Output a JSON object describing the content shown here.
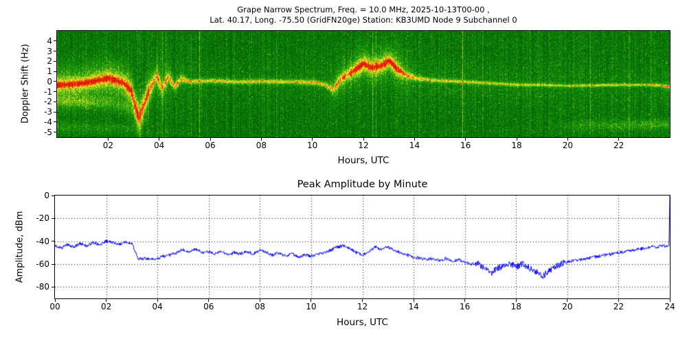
{
  "spectrogram": {
    "title_line1": "Grape Narrow Spectrum, Freq. = 10.0 MHz, 2025-10-13T00-00 ,",
    "title_line2": "Lat. 40.17, Long. -75.50 (GridFN20ge) Station: KB3UMD Node 9 Subchannel 0",
    "ylabel": "Doppler Shift (Hz)",
    "xlabel": "Hours, UTC",
    "xticks": [
      "02",
      "04",
      "06",
      "08",
      "10",
      "12",
      "14",
      "16",
      "18",
      "20",
      "22"
    ],
    "xtick_hours": [
      2,
      4,
      6,
      8,
      10,
      12,
      14,
      16,
      18,
      20,
      22
    ],
    "yticks": [
      "4",
      "3",
      "2",
      "1",
      "0",
      "-1",
      "-2",
      "-3",
      "-4",
      "-5"
    ],
    "ytick_values": [
      4,
      3,
      2,
      1,
      0,
      -1,
      -2,
      -3,
      -4,
      -5
    ]
  },
  "amplitude": {
    "title": "Peak Amplitude by Minute",
    "ylabel": "Amplitude, dBm",
    "xlabel": "Hours, UTC",
    "xticks": [
      "00",
      "02",
      "04",
      "06",
      "08",
      "10",
      "12",
      "14",
      "16",
      "18",
      "20",
      "22",
      "24"
    ],
    "xtick_hours": [
      0,
      2,
      4,
      6,
      8,
      10,
      12,
      14,
      16,
      18,
      20,
      22,
      24
    ],
    "yticks": [
      "0",
      "-20",
      "-40",
      "-60",
      "-80"
    ],
    "ytick_values": [
      0,
      -20,
      -40,
      -60,
      -80
    ]
  },
  "chart_data": [
    {
      "type": "heatmap",
      "title": "Grape Narrow Spectrum, Freq. = 10.0 MHz, 2025-10-13T00-00, Lat. 40.17, Long. -75.50 (GridFN20ge) Station: KB3UMD Node 9 Subchannel 0",
      "xlabel": "Hours, UTC",
      "ylabel": "Doppler Shift (Hz)",
      "xlim": [
        0,
        24
      ],
      "ylim": [
        -5.5,
        5
      ],
      "colormap": "green-yellow-red",
      "description": "Doppler spectrogram: green noise background with a yellow/red carrier ridge near 0 Hz; disturbed periods 00-04 UTC (dip to -3.6 Hz near 03:10) and 11-13.5 UTC (rise to +2 Hz), quiet narrow trace otherwise.",
      "doppler_ridge": {
        "x": [
          0,
          0.5,
          1,
          1.5,
          2,
          2.3,
          2.6,
          2.9,
          3.05,
          3.2,
          3.4,
          3.6,
          3.9,
          4.1,
          4.35,
          4.6,
          4.85,
          5.2,
          6,
          7,
          8,
          9,
          10,
          10.5,
          10.8,
          11.1,
          11.5,
          12,
          12.3,
          12.7,
          13,
          13.3,
          13.7,
          14.2,
          15,
          16,
          17,
          18,
          19,
          20,
          21,
          22,
          23,
          23.6,
          24
        ],
        "y": [
          -0.3,
          -0.25,
          -0.15,
          0.1,
          0.35,
          0.15,
          -0.1,
          -0.9,
          -2.4,
          -3.6,
          -2.2,
          -0.8,
          0.6,
          -0.7,
          0.5,
          -0.5,
          0.3,
          0,
          0.1,
          0,
          0.05,
          0,
          -0.05,
          -0.3,
          -0.8,
          0.3,
          0.9,
          1.8,
          1.4,
          1.6,
          2.1,
          1.3,
          0.6,
          0.3,
          0.1,
          0,
          -0.15,
          -0.3,
          -0.3,
          -0.4,
          -0.35,
          -0.3,
          -0.3,
          -0.35,
          -0.5
        ]
      },
      "ridge_sigma_hz": {
        "x": [
          0,
          2.5,
          2.9,
          3.3,
          3.8,
          4.5,
          5.2,
          10.4,
          10.9,
          11.4,
          12,
          13.2,
          13.8,
          14.5,
          19,
          20,
          24
        ],
        "v": [
          0.42,
          0.45,
          0.6,
          0.85,
          0.55,
          0.4,
          0.2,
          0.2,
          0.4,
          0.45,
          0.55,
          0.5,
          0.3,
          0.17,
          0.15,
          0.13,
          0.13
        ]
      },
      "ridge_intensity": {
        "x": [
          0,
          2,
          2.5,
          3.2,
          4,
          5,
          10.3,
          10.8,
          11.3,
          11.9,
          13.2,
          13.6,
          14.2,
          15,
          19.5,
          20,
          23,
          23.7,
          24
        ],
        "v": [
          0.95,
          1.0,
          0.9,
          0.85,
          0.72,
          0.78,
          0.75,
          0.7,
          0.75,
          1.0,
          1.0,
          0.8,
          0.7,
          0.65,
          0.6,
          0.62,
          0.65,
          0.85,
          1.0
        ]
      },
      "haze_intensity": {
        "x": [
          0,
          1,
          2.8,
          3.6,
          4.6,
          5.2,
          10.6,
          11,
          13.4,
          14,
          23.5,
          24
        ],
        "v": [
          0.28,
          0.3,
          0.34,
          0.22,
          0.12,
          0.06,
          0.06,
          0.22,
          0.24,
          0.08,
          0.05,
          0.15
        ]
      },
      "extra_bands": [
        {
          "x": [
            0,
            1,
            2,
            2.8,
            3.4
          ],
          "y": [
            -1.9,
            -2.0,
            -2.1,
            -2.6,
            -3.6
          ],
          "i": [
            0.26,
            0.28,
            0.22,
            0.18,
            0.0
          ],
          "sigma_hz": 0.45
        },
        {
          "x": [
            0,
            2.5,
            3.5,
            19,
            20.5,
            22,
            24
          ],
          "y": [
            -4.5,
            -4.6,
            -4.7,
            -4.7,
            -4.3,
            -4.3,
            -4.2
          ],
          "i": [
            0.16,
            0.12,
            0.0,
            0.0,
            0.14,
            0.2,
            0.24
          ],
          "sigma_hz": 0.35
        }
      ]
    },
    {
      "type": "line",
      "title": "Peak Amplitude by Minute",
      "xlabel": "Hours, UTC",
      "ylabel": "Amplitude, dBm",
      "xlim": [
        0,
        24
      ],
      "ylim": [
        -90,
        0
      ],
      "grid": true,
      "line_color": "#0000ff",
      "series": [
        {
          "name": "peak_amplitude_dbm",
          "x": [
            0,
            0.25,
            0.5,
            0.75,
            1,
            1.25,
            1.5,
            1.75,
            2,
            2.25,
            2.5,
            2.75,
            3,
            3.25,
            3.5,
            3.75,
            4,
            4.25,
            4.5,
            4.75,
            5,
            5.25,
            5.5,
            5.75,
            6,
            6.25,
            6.5,
            6.75,
            7,
            7.25,
            7.5,
            7.75,
            8,
            8.25,
            8.5,
            8.75,
            9,
            9.25,
            9.5,
            9.75,
            10,
            10.25,
            10.5,
            10.75,
            11,
            11.25,
            11.5,
            11.75,
            12,
            12.25,
            12.5,
            12.75,
            13,
            13.25,
            13.5,
            13.75,
            14,
            14.25,
            14.5,
            14.75,
            15,
            15.25,
            15.5,
            15.75,
            16,
            16.25,
            16.5,
            16.75,
            17,
            17.25,
            17.5,
            17.75,
            18,
            18.25,
            18.5,
            18.75,
            19,
            19.25,
            19.5,
            19.75,
            20,
            20.25,
            20.5,
            20.75,
            21,
            21.25,
            21.5,
            21.75,
            22,
            22.25,
            22.5,
            22.75,
            23,
            23.25,
            23.5,
            23.75,
            23.97,
            24
          ],
          "y": [
            -44,
            -46,
            -43,
            -45,
            -42,
            -44,
            -41,
            -43,
            -40,
            -41,
            -43,
            -41,
            -42,
            -56,
            -55,
            -56,
            -55,
            -53,
            -52,
            -50,
            -47,
            -49,
            -47,
            -50,
            -49,
            -51,
            -49,
            -52,
            -50,
            -51,
            -49,
            -51,
            -48,
            -50,
            -52,
            -50,
            -53,
            -51,
            -54,
            -52,
            -53,
            -51,
            -50,
            -48,
            -45,
            -44,
            -46,
            -50,
            -52,
            -49,
            -45,
            -47,
            -45,
            -48,
            -50,
            -52,
            -54,
            -55,
            -56,
            -55,
            -57,
            -55,
            -58,
            -56,
            -58,
            -60,
            -59,
            -63,
            -68,
            -64,
            -61,
            -60,
            -62,
            -60,
            -63,
            -66,
            -71,
            -67,
            -62,
            -60,
            -58,
            -57,
            -56,
            -55,
            -54,
            -53,
            -52,
            -51,
            -50,
            -49,
            -48,
            -47,
            -46,
            -45,
            -45,
            -44,
            -44,
            0
          ]
        }
      ]
    }
  ]
}
